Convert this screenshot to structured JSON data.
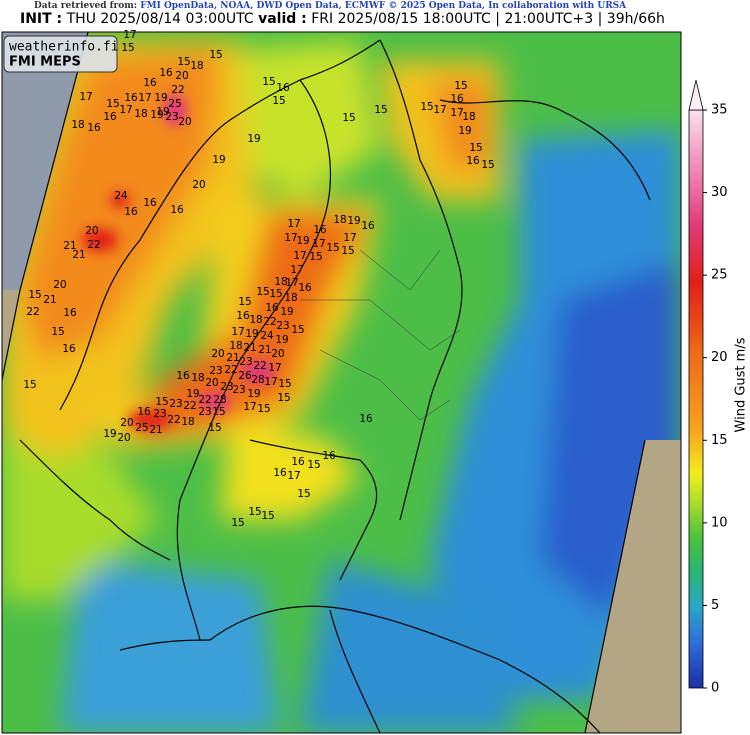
{
  "header": {
    "source_label": "Data retrieved from:",
    "source_text": "FMI OpenData, NOAA, DWD Open Data, ECMWF © 2025 Open Data, In collaboration with URSA",
    "init_label": "INIT :",
    "init_time": "THU 2025/08/14 03:00UTC",
    "valid_label": "valid :",
    "valid_time": "FRI 2025/08/15 18:00UTC | 21:00UTC+3 | 39h/66h"
  },
  "logo": {
    "site": "weatherinfo.fi",
    "model": "FMI MEPS"
  },
  "colorbar": {
    "label": "Wind Gust m/s",
    "lim": [
      0,
      35
    ],
    "ticks": [
      0,
      5,
      10,
      15,
      20,
      25,
      30,
      35
    ]
  },
  "gust_labels": [
    17,
    15,
    15,
    15,
    18,
    16,
    20,
    16,
    22,
    17,
    15,
    16,
    17,
    19,
    25,
    19,
    18,
    16,
    16,
    17,
    18,
    19,
    23,
    20,
    19,
    15,
    16,
    15,
    15,
    15,
    15,
    17,
    17,
    15,
    16,
    18,
    19,
    15,
    16,
    15,
    19,
    20,
    16,
    24,
    16,
    16,
    20,
    21,
    22,
    21,
    20,
    15,
    22,
    21,
    16,
    15,
    16,
    15,
    17,
    16,
    18,
    19,
    16,
    17,
    17,
    19,
    17,
    15,
    15,
    17,
    15,
    17,
    18,
    17,
    16,
    15,
    15,
    18,
    15,
    16,
    19,
    16,
    18,
    22,
    23,
    15,
    17,
    19,
    24,
    19,
    18,
    21,
    21,
    20,
    20,
    21,
    23,
    22,
    17,
    23,
    22,
    26,
    28,
    17,
    15,
    16,
    18,
    20,
    23,
    23,
    19,
    15,
    19,
    22,
    28,
    15,
    23,
    22,
    23,
    15,
    16,
    23,
    22,
    18,
    20,
    25,
    21,
    19,
    20,
    15,
    17,
    15,
    16,
    16,
    16,
    15,
    16,
    17,
    15,
    15,
    15,
    15
  ]
}
